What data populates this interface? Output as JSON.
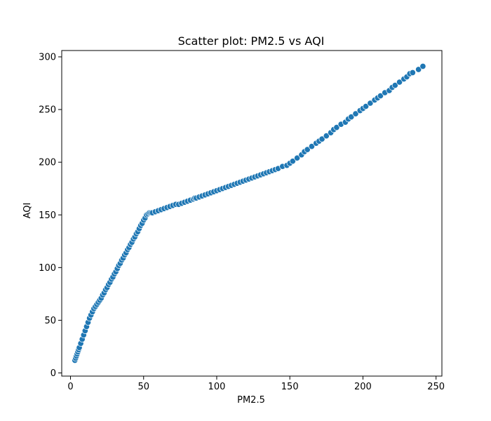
{
  "chart_data": {
    "type": "scatter",
    "title": "Scatter plot: PM2.5 vs AQI",
    "xlabel": "PM2.5",
    "ylabel": "AQI",
    "xlim": [
      -6,
      254
    ],
    "ylim": [
      -3,
      306
    ],
    "xticks": [
      0,
      50,
      100,
      150,
      200,
      250
    ],
    "yticks": [
      0,
      50,
      100,
      150,
      200,
      250,
      300
    ],
    "grid": false,
    "legend": "none",
    "color": "#1f77b4",
    "series": [
      {
        "x": [
          3,
          3.5,
          4,
          4.5,
          5,
          5.5,
          6,
          7,
          8,
          9,
          10,
          11,
          12,
          13,
          14,
          15,
          16,
          17,
          18,
          19,
          20,
          21,
          22,
          23,
          24,
          25,
          26,
          27,
          28,
          29,
          30,
          31,
          32,
          33,
          34,
          35,
          36,
          37,
          38,
          39,
          40,
          41,
          42,
          43,
          44,
          45,
          46,
          47,
          48,
          49,
          50,
          51,
          52,
          53,
          54,
          55,
          56,
          58,
          60,
          62,
          64,
          66,
          68,
          70,
          72,
          74,
          76,
          78,
          80,
          82,
          84,
          85,
          86,
          88,
          90,
          92,
          94,
          96,
          98,
          100,
          102,
          104,
          106,
          108,
          110,
          112,
          114,
          116,
          118,
          120,
          122,
          124,
          126,
          128,
          130,
          132,
          134,
          136,
          138,
          140,
          142,
          145,
          148,
          150,
          152,
          155,
          158,
          160,
          162,
          165,
          168,
          170,
          172,
          175,
          178,
          180,
          182,
          185,
          188,
          190,
          192,
          195,
          198,
          200,
          202,
          205,
          208,
          210,
          212,
          215,
          218,
          220,
          222,
          225,
          228,
          230,
          232,
          234,
          238,
          241
        ],
        "y": [
          12,
          14,
          16,
          18,
          20,
          22,
          24,
          28,
          32,
          36,
          40,
          44,
          48,
          52,
          55,
          58,
          61,
          63,
          65,
          67,
          69,
          71,
          74,
          76,
          79,
          81,
          84,
          86,
          89,
          91,
          94,
          96,
          99,
          102,
          104,
          107,
          109,
          112,
          114,
          117,
          119,
          122,
          124,
          127,
          129,
          132,
          134,
          137,
          140,
          142,
          145,
          147,
          150,
          151,
          152,
          152,
          152,
          153,
          154,
          155,
          156,
          157,
          158,
          159,
          160,
          160,
          161,
          162,
          163,
          164,
          165,
          166,
          166,
          167,
          168,
          169,
          170,
          171,
          172,
          173,
          174,
          175,
          176,
          177,
          178,
          179,
          180,
          181,
          182,
          183,
          184,
          185,
          186,
          187,
          188,
          189,
          190,
          191,
          192,
          193,
          194,
          196,
          197,
          199,
          201,
          204,
          207,
          210,
          212,
          215,
          218,
          220,
          222,
          225,
          228,
          231,
          233,
          236,
          238,
          241,
          243,
          246,
          249,
          251,
          253,
          256,
          259,
          261,
          263,
          266,
          268,
          271,
          273,
          276,
          279,
          281,
          284,
          285,
          288,
          291
        ]
      }
    ]
  }
}
